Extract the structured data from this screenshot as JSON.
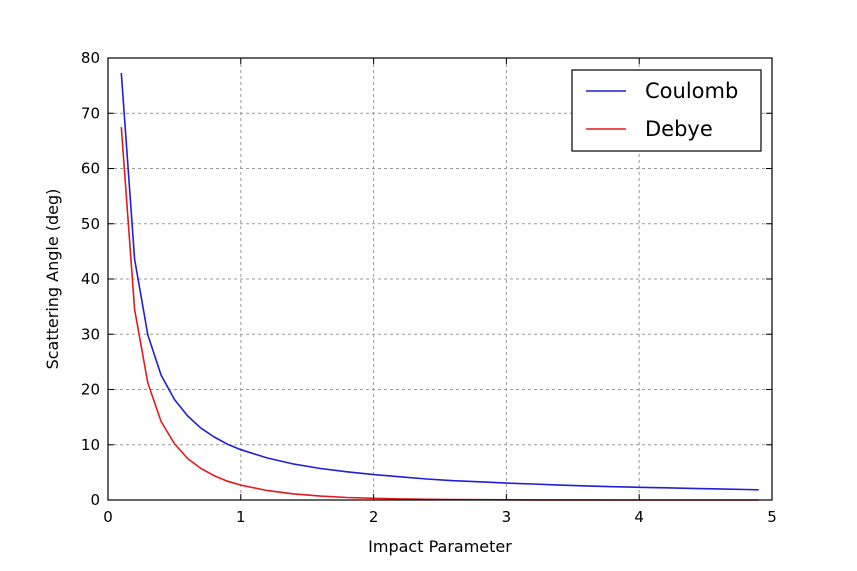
{
  "chart_data": {
    "type": "line",
    "xlabel": "Impact Parameter",
    "ylabel": "Scattering Angle (deg)",
    "xlim": [
      0,
      5
    ],
    "ylim": [
      0,
      80
    ],
    "xticks": [
      0,
      1,
      2,
      3,
      4,
      5
    ],
    "yticks": [
      0,
      10,
      20,
      30,
      40,
      50,
      60,
      70,
      80
    ],
    "grid": true,
    "legend_position": "top-right",
    "x": [
      0.1,
      0.2,
      0.3,
      0.4,
      0.5,
      0.6,
      0.7,
      0.8,
      0.9,
      1.0,
      1.2,
      1.4,
      1.6,
      1.8,
      2.0,
      2.2,
      2.4,
      2.6,
      2.8,
      3.0,
      3.2,
      3.4,
      3.6,
      3.8,
      4.0,
      4.2,
      4.4,
      4.6,
      4.8,
      4.9
    ],
    "series": [
      {
        "name": "Coulomb",
        "color": "#1f1fd8",
        "values": [
          77.3,
          43.6,
          29.9,
          22.6,
          18.2,
          15.2,
          13.0,
          11.4,
          10.1,
          9.1,
          7.6,
          6.5,
          5.7,
          5.1,
          4.6,
          4.2,
          3.8,
          3.5,
          3.3,
          3.05,
          2.9,
          2.7,
          2.55,
          2.4,
          2.3,
          2.2,
          2.1,
          2.0,
          1.9,
          1.85
        ]
      },
      {
        "name": "Debye",
        "color": "#e41a1c",
        "values": [
          67.5,
          34.5,
          21.2,
          14.2,
          10.2,
          7.5,
          5.7,
          4.4,
          3.4,
          2.7,
          1.7,
          1.1,
          0.7,
          0.45,
          0.3,
          0.2,
          0.13,
          0.08,
          0.05,
          0.03,
          0.02,
          0.01,
          0.01,
          0.0,
          0.0,
          0.0,
          0.0,
          0.0,
          0.0,
          0.0
        ]
      }
    ]
  }
}
